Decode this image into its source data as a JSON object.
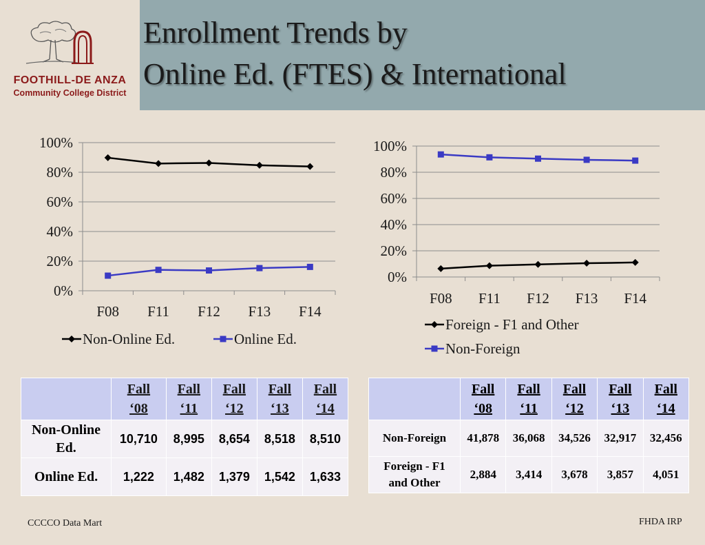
{
  "header": {
    "logo": {
      "line1": "FOOTHILL-DE ANZA",
      "line2": "Community College District"
    },
    "title_line1": "Enrollment Trends by",
    "title_line2": "Online Ed. (FTES) & International"
  },
  "chart_data": [
    {
      "type": "line",
      "categories": [
        "F08",
        "F11",
        "F12",
        "F13",
        "F14"
      ],
      "ylim": [
        0,
        100
      ],
      "yticks": [
        "0%",
        "20%",
        "40%",
        "60%",
        "80%",
        "100%"
      ],
      "grid": true,
      "legend_position": "bottom",
      "series": [
        {
          "name": "Non-Online Ed.",
          "values": [
            89.8,
            85.9,
            86.3,
            84.7,
            83.9
          ],
          "color": "#000000",
          "marker": "diamond"
        },
        {
          "name": "Online Ed.",
          "values": [
            10.2,
            14.1,
            13.7,
            15.3,
            16.1
          ],
          "color": "#3a3ac4",
          "marker": "square"
        }
      ]
    },
    {
      "type": "line",
      "categories": [
        "F08",
        "F11",
        "F12",
        "F13",
        "F14"
      ],
      "ylim": [
        0,
        100
      ],
      "yticks": [
        "0%",
        "20%",
        "40%",
        "60%",
        "80%",
        "100%"
      ],
      "grid": true,
      "legend_position": "bottom",
      "series": [
        {
          "name": "Foreign - F1 and Other",
          "values": [
            6.4,
            8.6,
            9.6,
            10.5,
            11.1
          ],
          "color": "#000000",
          "marker": "diamond"
        },
        {
          "name": "Non-Foreign",
          "values": [
            93.6,
            91.4,
            90.4,
            89.5,
            88.9
          ],
          "color": "#3a3ac4",
          "marker": "square"
        }
      ]
    }
  ],
  "table1": {
    "headers": [
      [
        "Fall",
        "‘08"
      ],
      [
        "Fall",
        "‘11"
      ],
      [
        "Fall",
        "‘12"
      ],
      [
        "Fall",
        "‘13"
      ],
      [
        "Fall",
        "‘14"
      ]
    ],
    "rows": [
      {
        "label_line1": "Non-Online",
        "label_line2": "Ed.",
        "values": [
          "10,710",
          "8,995",
          "8,654",
          "8,518",
          "8,510"
        ]
      },
      {
        "label_line1": "Online Ed.",
        "label_line2": "",
        "values": [
          "1,222",
          "1,482",
          "1,379",
          "1,542",
          "1,633"
        ]
      }
    ]
  },
  "table2": {
    "headers": [
      [
        "Fall",
        "‘08"
      ],
      [
        "Fall",
        "‘11"
      ],
      [
        "Fall",
        "‘12"
      ],
      [
        "Fall",
        "‘13"
      ],
      [
        "Fall",
        "‘14"
      ]
    ],
    "rows": [
      {
        "label_line1": "Non-Foreign",
        "label_line2": "",
        "values": [
          "41,878",
          "36,068",
          "34,526",
          "32,917",
          "32,456"
        ]
      },
      {
        "label_line1": "Foreign - F1",
        "label_line2": "and Other",
        "values": [
          "2,884",
          "3,414",
          "3,678",
          "3,857",
          "4,051"
        ]
      }
    ]
  },
  "footer": {
    "source": "CCCCO Data Mart",
    "credit": "FHDA IRP"
  }
}
